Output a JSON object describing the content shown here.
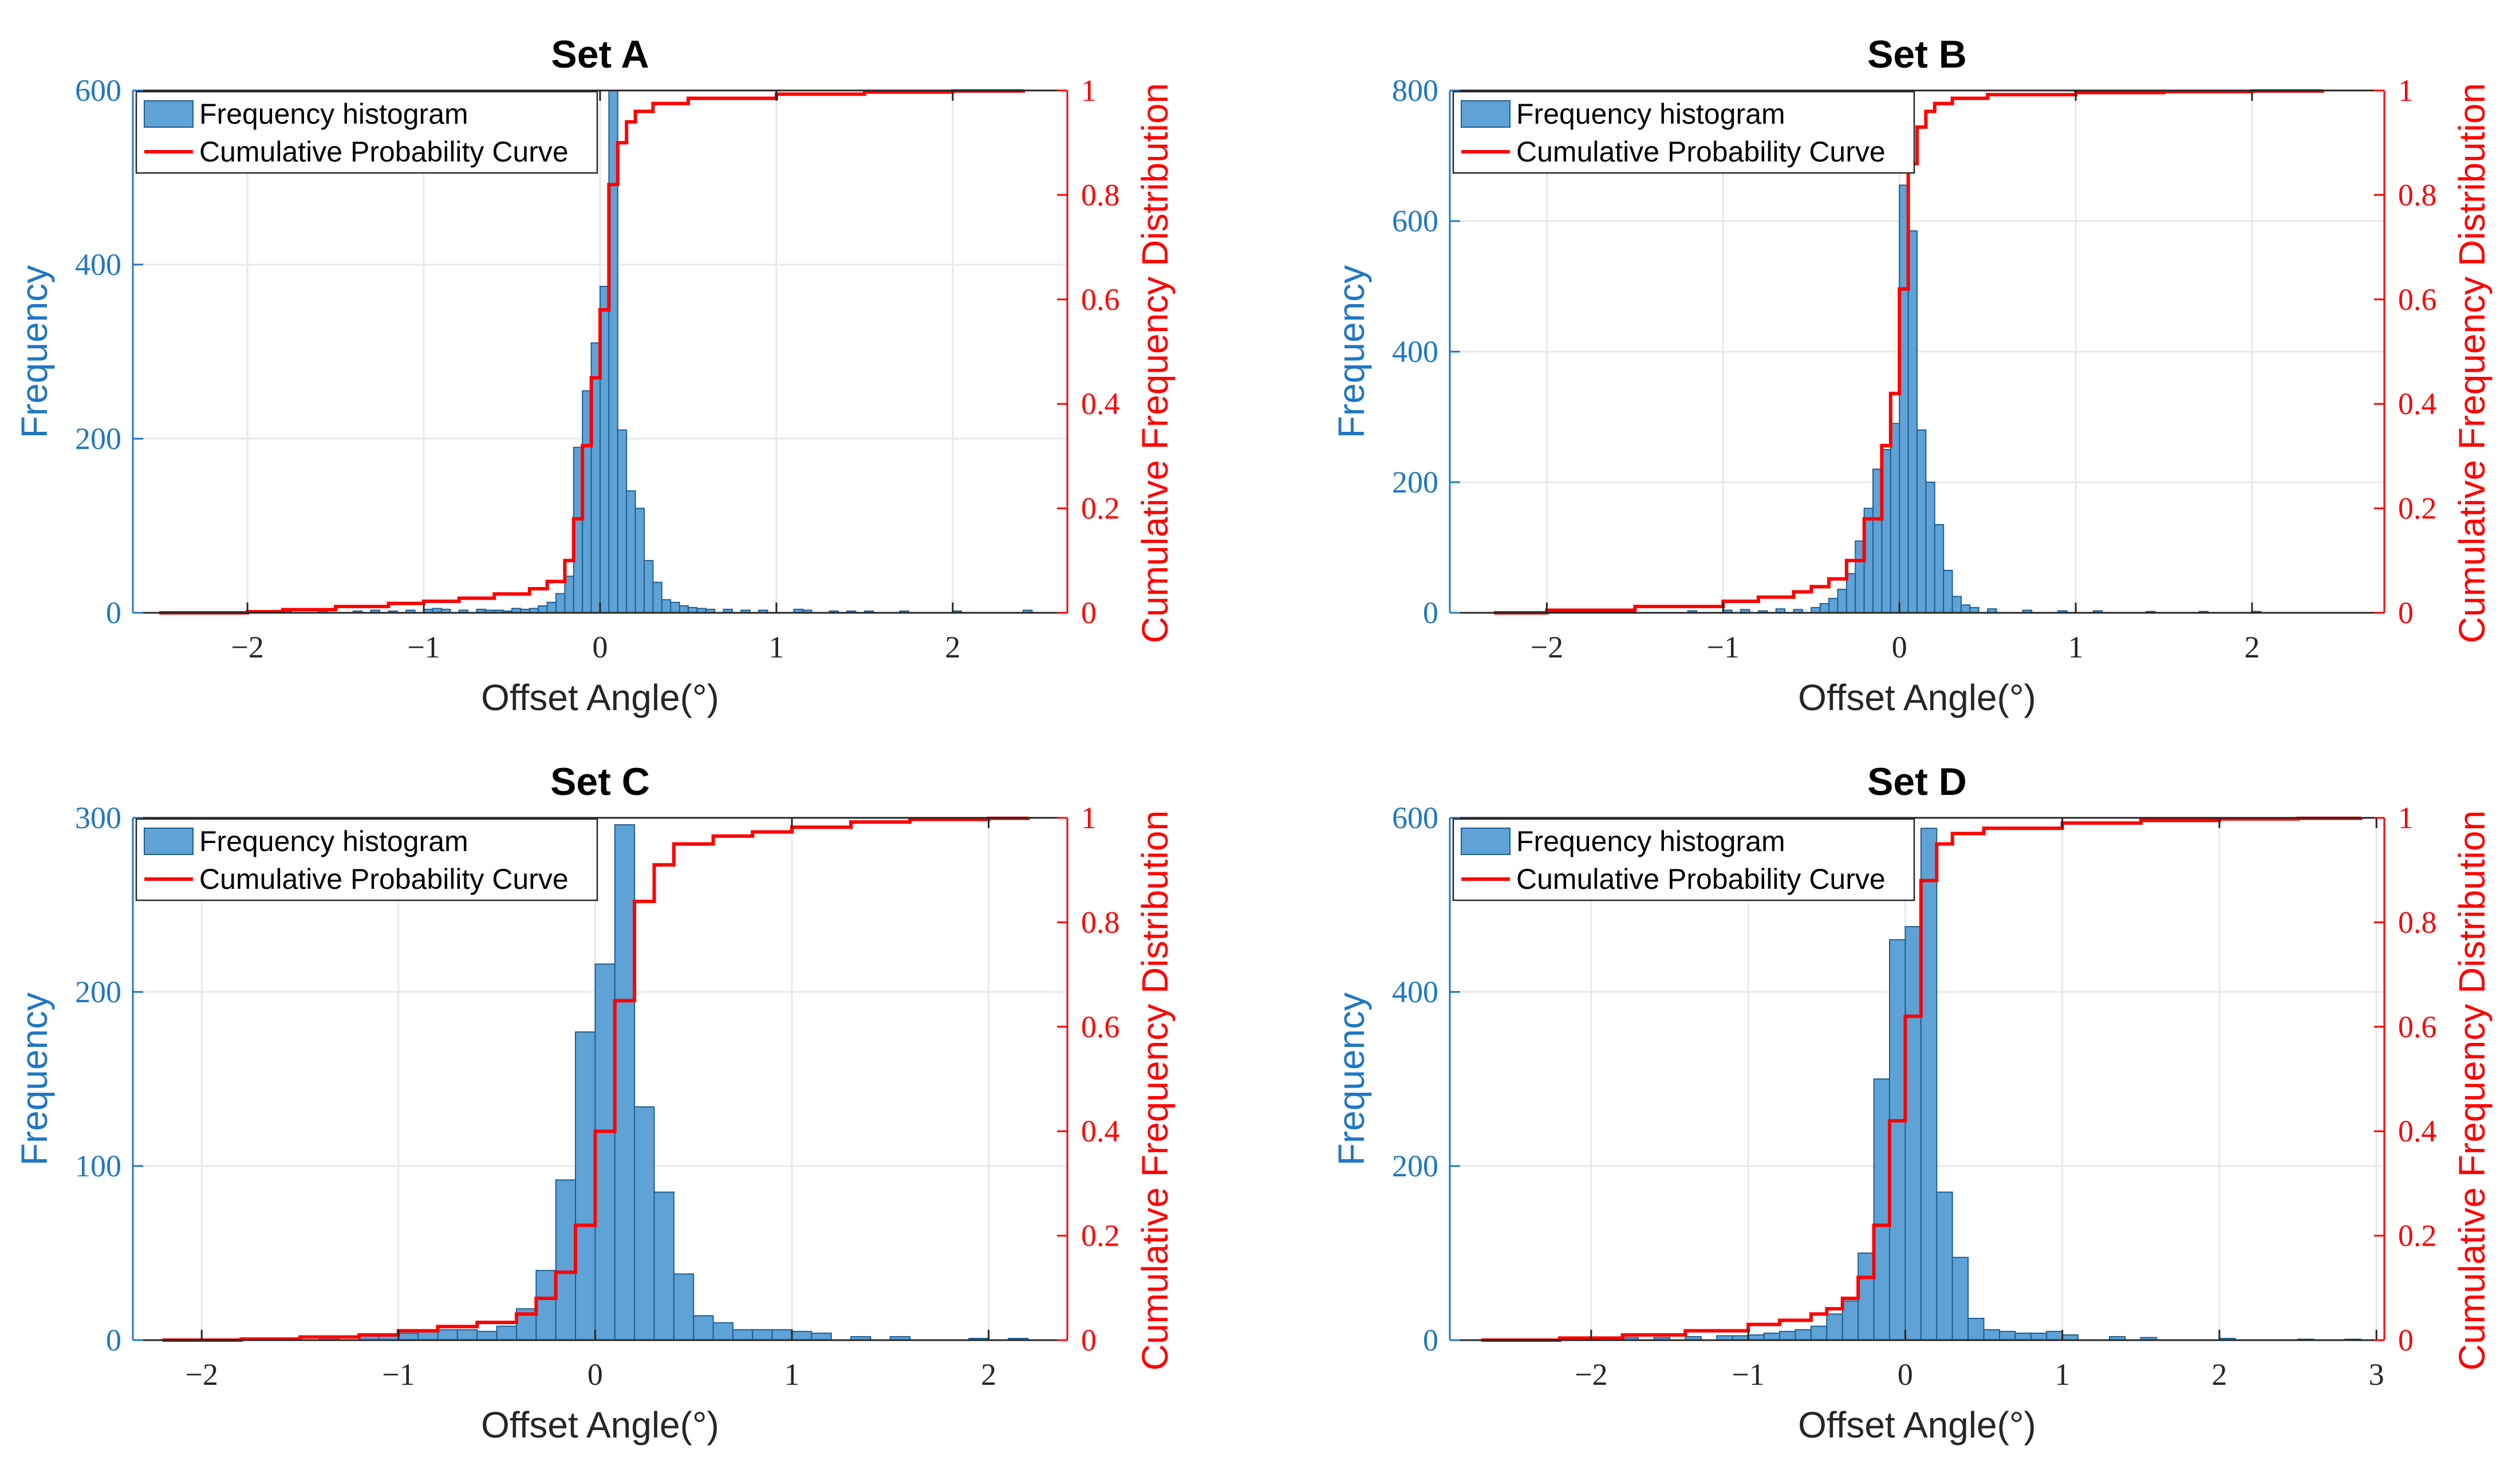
{
  "colors": {
    "histogram": "#5fa2d6",
    "histogram_edge": "#1f5f91",
    "cdf": "#ff0000",
    "left_axis": "#1f77c4",
    "right_axis": "#ff0000",
    "grid": "#e8e8e8"
  },
  "chart_data": [
    {
      "type": "bar",
      "title": "Set A",
      "xlabel": "Offset Angle(°)",
      "ylabel": "Frequency",
      "y2label": "Cumulative Frequency Distribution",
      "xlim": [
        -2.65,
        2.65
      ],
      "ylim": [
        0,
        600
      ],
      "y2lim": [
        0,
        1
      ],
      "xticks": [
        -2,
        -1,
        0,
        1,
        2
      ],
      "xtick_labels": [
        "−2",
        "−1",
        "0",
        "1",
        "2"
      ],
      "yticks": [
        0,
        200,
        400,
        600
      ],
      "ytick_labels": [
        "0",
        "200",
        "400",
        "600"
      ],
      "y2ticks": [
        0,
        0.2,
        0.4,
        0.6,
        0.8,
        1
      ],
      "y2tick_labels": [
        "0",
        "0.2",
        "0.4",
        "0.6",
        "0.8",
        "1"
      ],
      "grid": true,
      "legend": {
        "position": "top-left",
        "entries": [
          "Frequency histogram",
          "Cumulative Probability Curve"
        ]
      },
      "series": [
        {
          "name": "Frequency histogram",
          "type": "histogram",
          "bin_width": 0.05,
          "bin_left": [
            -1.8,
            -1.6,
            -1.4,
            -1.3,
            -1.2,
            -1.1,
            -1.0,
            -0.95,
            -0.9,
            -0.8,
            -0.7,
            -0.65,
            -0.6,
            -0.55,
            -0.5,
            -0.45,
            -0.4,
            -0.35,
            -0.3,
            -0.25,
            -0.2,
            -0.15,
            -0.1,
            -0.05,
            0.0,
            0.05,
            0.1,
            0.15,
            0.2,
            0.25,
            0.3,
            0.35,
            0.4,
            0.45,
            0.5,
            0.55,
            0.6,
            0.7,
            0.8,
            0.9,
            1.1,
            1.15,
            1.3,
            1.4,
            1.5,
            1.7,
            2.0,
            2.4
          ],
          "values": [
            2,
            2,
            2,
            3,
            2,
            3,
            4,
            5,
            4,
            3,
            4,
            3,
            3,
            2,
            5,
            4,
            5,
            8,
            12,
            22,
            42,
            190,
            255,
            310,
            375,
            600,
            210,
            140,
            120,
            60,
            35,
            15,
            12,
            8,
            6,
            5,
            4,
            4,
            3,
            3,
            4,
            3,
            2,
            2,
            2,
            2,
            2,
            3
          ]
        },
        {
          "name": "Cumulative Probability Curve",
          "type": "line",
          "axis": "right",
          "x": [
            -2.5,
            -2.0,
            -1.8,
            -1.5,
            -1.2,
            -1.0,
            -0.8,
            -0.6,
            -0.4,
            -0.3,
            -0.2,
            -0.15,
            -0.1,
            -0.05,
            0.0,
            0.05,
            0.1,
            0.15,
            0.2,
            0.3,
            0.5,
            1.0,
            1.5,
            2.0,
            2.4
          ],
          "values": [
            0.0,
            0.002,
            0.006,
            0.012,
            0.018,
            0.022,
            0.028,
            0.036,
            0.046,
            0.06,
            0.1,
            0.18,
            0.32,
            0.45,
            0.58,
            0.82,
            0.9,
            0.94,
            0.96,
            0.975,
            0.985,
            0.993,
            0.997,
            0.999,
            1.0
          ]
        }
      ]
    },
    {
      "type": "bar",
      "title": "Set B",
      "xlabel": "Offset Angle(°)",
      "ylabel": "Frequency",
      "y2label": "Cumulative Frequency Distribution",
      "xlim": [
        -2.55,
        2.75
      ],
      "ylim": [
        0,
        800
      ],
      "y2lim": [
        0,
        1
      ],
      "xticks": [
        -2,
        -1,
        0,
        1,
        2
      ],
      "xtick_labels": [
        "−2",
        "−1",
        "0",
        "1",
        "2"
      ],
      "yticks": [
        0,
        200,
        400,
        600,
        800
      ],
      "ytick_labels": [
        "0",
        "200",
        "400",
        "600",
        "800"
      ],
      "y2ticks": [
        0,
        0.2,
        0.4,
        0.6,
        0.8,
        1
      ],
      "y2tick_labels": [
        "0",
        "0.2",
        "0.4",
        "0.6",
        "0.8",
        "1"
      ],
      "grid": true,
      "legend": {
        "position": "top-left",
        "entries": [
          "Frequency histogram",
          "Cumulative Probability Curve"
        ]
      },
      "series": [
        {
          "name": "Frequency histogram",
          "type": "histogram",
          "bin_width": 0.05,
          "bin_left": [
            -1.2,
            -1.0,
            -0.9,
            -0.8,
            -0.7,
            -0.6,
            -0.5,
            -0.45,
            -0.4,
            -0.35,
            -0.3,
            -0.25,
            -0.2,
            -0.15,
            -0.1,
            -0.05,
            0.0,
            0.05,
            0.1,
            0.15,
            0.2,
            0.25,
            0.3,
            0.35,
            0.4,
            0.5,
            0.7,
            0.9,
            1.1,
            1.4,
            1.7,
            2.0
          ],
          "values": [
            3,
            4,
            5,
            3,
            6,
            5,
            8,
            14,
            22,
            36,
            60,
            110,
            160,
            220,
            250,
            290,
            655,
            585,
            280,
            200,
            135,
            65,
            25,
            12,
            8,
            6,
            4,
            3,
            3,
            2,
            2,
            2
          ]
        },
        {
          "name": "Cumulative Probability Curve",
          "type": "line",
          "axis": "right",
          "x": [
            -2.3,
            -2.0,
            -1.5,
            -1.0,
            -0.8,
            -0.6,
            -0.5,
            -0.4,
            -0.3,
            -0.2,
            -0.1,
            -0.05,
            0.0,
            0.05,
            0.1,
            0.15,
            0.2,
            0.3,
            0.5,
            1.0,
            1.5,
            2.0,
            2.4
          ],
          "values": [
            0.0,
            0.005,
            0.012,
            0.022,
            0.03,
            0.04,
            0.05,
            0.065,
            0.1,
            0.18,
            0.32,
            0.42,
            0.62,
            0.86,
            0.93,
            0.96,
            0.975,
            0.985,
            0.992,
            0.996,
            0.998,
            0.999,
            1.0
          ]
        }
      ]
    },
    {
      "type": "bar",
      "title": "Set C",
      "xlabel": "Offset Angle(°)",
      "ylabel": "Frequency",
      "y2label": "Cumulative Frequency Distribution",
      "xlim": [
        -2.35,
        2.4
      ],
      "ylim": [
        0,
        300
      ],
      "y2lim": [
        0,
        1
      ],
      "xticks": [
        -2,
        -1,
        0,
        1,
        2
      ],
      "xtick_labels": [
        "−2",
        "−1",
        "0",
        "1",
        "2"
      ],
      "yticks": [
        0,
        100,
        200,
        300
      ],
      "ytick_labels": [
        "0",
        "100",
        "200",
        "300"
      ],
      "y2ticks": [
        0,
        0.2,
        0.4,
        0.6,
        0.8,
        1
      ],
      "y2tick_labels": [
        "0",
        "0.2",
        "0.4",
        "0.6",
        "0.8",
        "1"
      ],
      "grid": true,
      "legend": {
        "position": "top-left",
        "entries": [
          "Frequency histogram",
          "Cumulative Probability Curve"
        ]
      },
      "series": [
        {
          "name": "Frequency histogram",
          "type": "histogram",
          "bin_width": 0.1,
          "bin_left": [
            -1.8,
            -1.6,
            -1.4,
            -1.2,
            -1.1,
            -1.0,
            -0.9,
            -0.8,
            -0.7,
            -0.6,
            -0.5,
            -0.4,
            -0.3,
            -0.2,
            -0.1,
            0.0,
            0.1,
            0.2,
            0.3,
            0.4,
            0.5,
            0.6,
            0.7,
            0.8,
            0.9,
            1.0,
            1.1,
            1.3,
            1.5,
            1.9,
            2.1
          ],
          "values": [
            1,
            1,
            2,
            3,
            3,
            4,
            5,
            6,
            6,
            5,
            8,
            18,
            40,
            92,
            177,
            216,
            296,
            134,
            85,
            38,
            14,
            10,
            6,
            6,
            6,
            5,
            4,
            2,
            2,
            1,
            1
          ]
        },
        {
          "name": "Cumulative Probability Curve",
          "type": "line",
          "axis": "right",
          "x": [
            -2.2,
            -1.8,
            -1.5,
            -1.2,
            -1.0,
            -0.8,
            -0.6,
            -0.4,
            -0.3,
            -0.2,
            -0.1,
            0.0,
            0.1,
            0.2,
            0.3,
            0.4,
            0.6,
            0.8,
            1.0,
            1.3,
            1.6,
            2.0,
            2.2
          ],
          "values": [
            0.0,
            0.002,
            0.006,
            0.01,
            0.018,
            0.026,
            0.034,
            0.05,
            0.08,
            0.13,
            0.22,
            0.4,
            0.65,
            0.84,
            0.91,
            0.95,
            0.965,
            0.973,
            0.982,
            0.992,
            0.997,
            0.999,
            1.0
          ]
        }
      ]
    },
    {
      "type": "bar",
      "title": "Set D",
      "xlabel": "Offset Angle(°)",
      "ylabel": "Frequency",
      "y2label": "Cumulative Frequency Distribution",
      "xlim": [
        -2.9,
        3.05
      ],
      "ylim": [
        0,
        600
      ],
      "y2lim": [
        0,
        1
      ],
      "xticks": [
        -2,
        -1,
        0,
        1,
        2,
        3
      ],
      "xtick_labels": [
        "−2",
        "−1",
        "0",
        "1",
        "2",
        "3"
      ],
      "yticks": [
        0,
        200,
        400,
        600
      ],
      "ytick_labels": [
        "0",
        "200",
        "400",
        "600"
      ],
      "y2ticks": [
        0,
        0.2,
        0.4,
        0.6,
        0.8,
        1
      ],
      "y2tick_labels": [
        "0",
        "0.2",
        "0.4",
        "0.6",
        "0.8",
        "1"
      ],
      "grid": true,
      "legend": {
        "position": "top-left",
        "entries": [
          "Frequency histogram",
          "Cumulative Probability Curve"
        ]
      },
      "series": [
        {
          "name": "Frequency histogram",
          "type": "histogram",
          "bin_width": 0.1,
          "bin_left": [
            -2.0,
            -1.8,
            -1.6,
            -1.4,
            -1.2,
            -1.1,
            -1.0,
            -0.9,
            -0.8,
            -0.7,
            -0.6,
            -0.5,
            -0.4,
            -0.3,
            -0.2,
            -0.1,
            0.0,
            0.1,
            0.2,
            0.3,
            0.4,
            0.5,
            0.6,
            0.7,
            0.8,
            0.9,
            1.0,
            1.3,
            1.5,
            2.0,
            2.5,
            2.8
          ],
          "values": [
            2,
            3,
            3,
            4,
            5,
            5,
            6,
            8,
            10,
            12,
            16,
            30,
            45,
            100,
            300,
            460,
            475,
            588,
            170,
            95,
            25,
            12,
            10,
            8,
            8,
            10,
            6,
            4,
            3,
            2,
            1,
            1
          ]
        },
        {
          "name": "Cumulative Probability Curve",
          "type": "line",
          "axis": "right",
          "x": [
            -2.7,
            -2.2,
            -1.8,
            -1.4,
            -1.0,
            -0.8,
            -0.6,
            -0.5,
            -0.4,
            -0.3,
            -0.2,
            -0.1,
            0.0,
            0.1,
            0.2,
            0.3,
            0.5,
            1.0,
            1.5,
            2.0,
            2.5,
            2.9
          ],
          "values": [
            0.0,
            0.004,
            0.01,
            0.018,
            0.03,
            0.038,
            0.05,
            0.06,
            0.08,
            0.12,
            0.22,
            0.42,
            0.62,
            0.88,
            0.95,
            0.97,
            0.98,
            0.99,
            0.995,
            0.998,
            0.999,
            1.0
          ]
        }
      ]
    }
  ]
}
